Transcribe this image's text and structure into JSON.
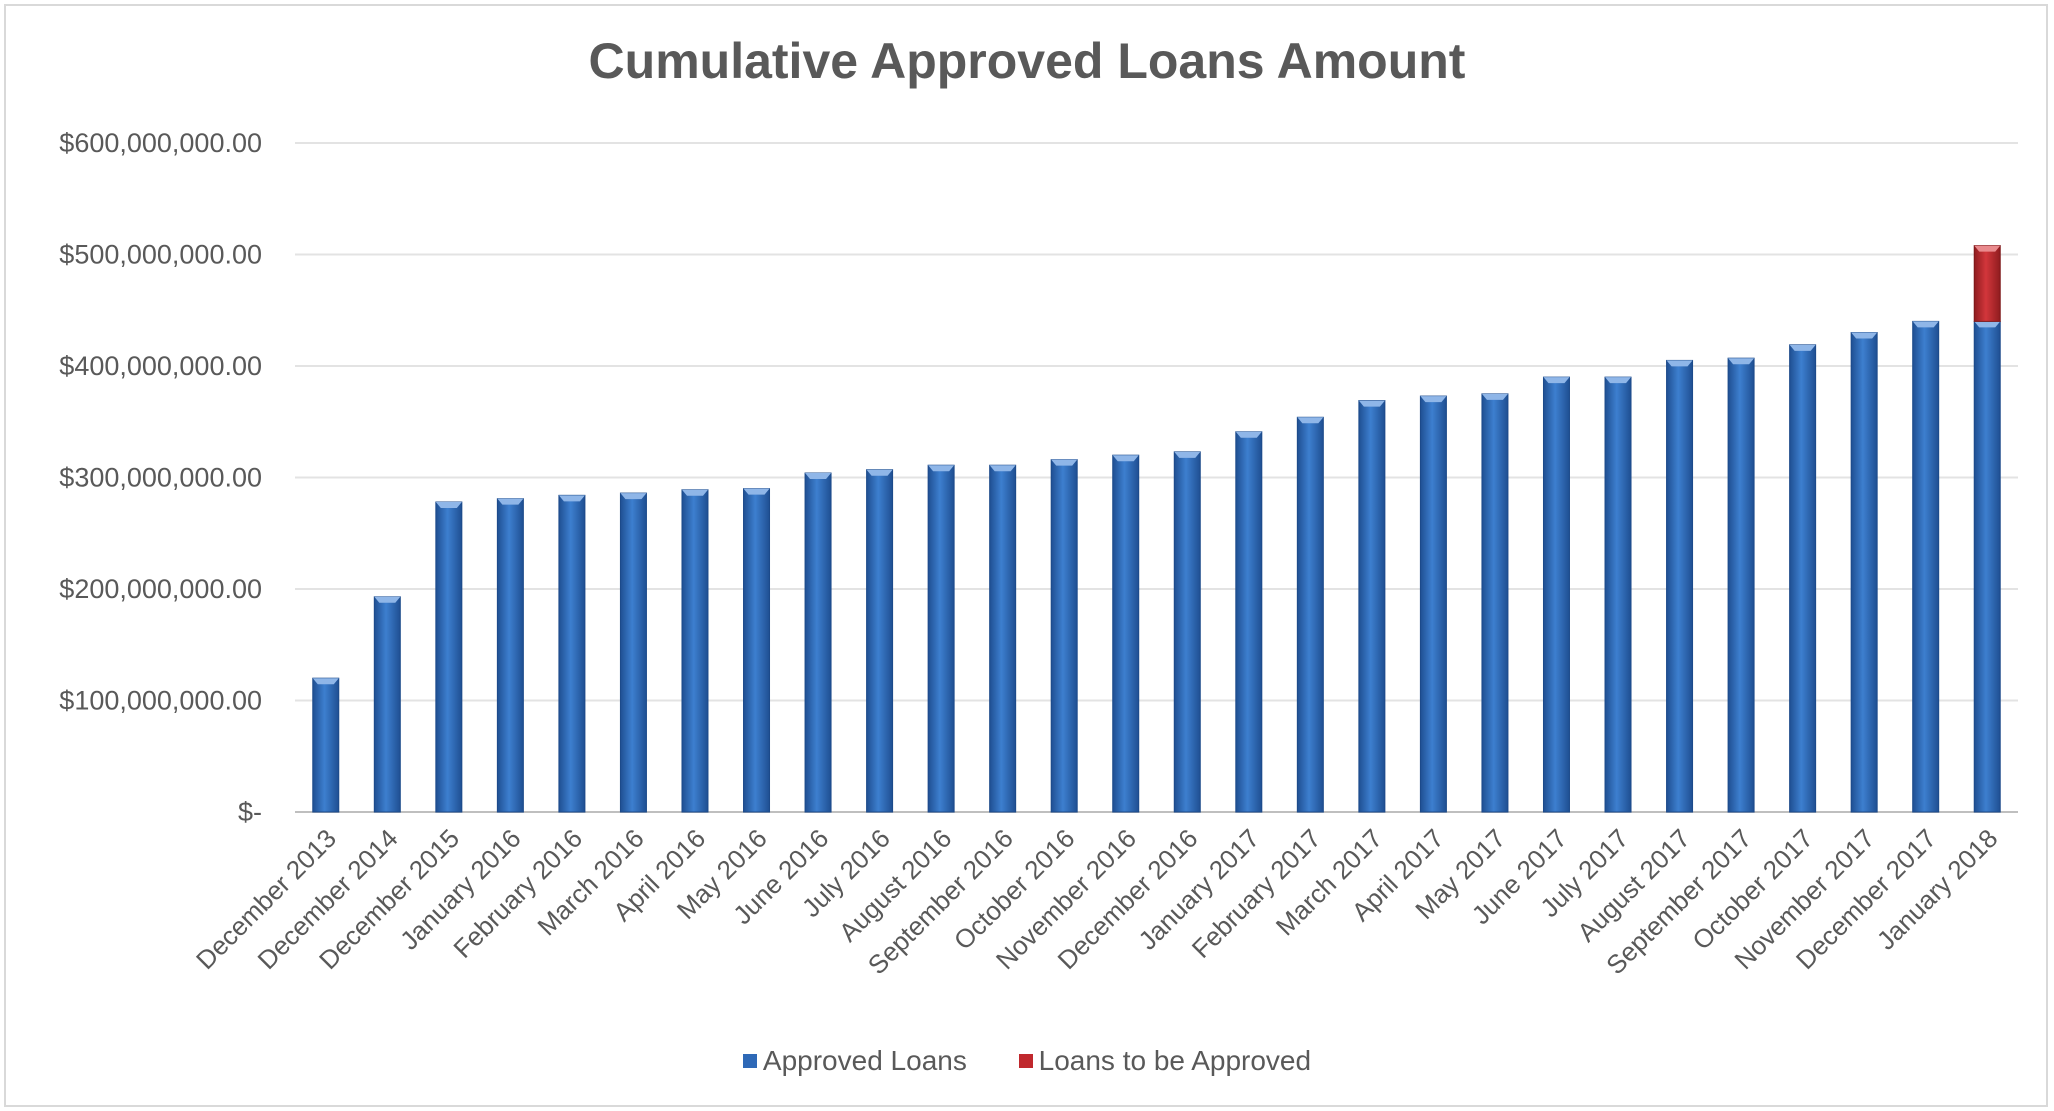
{
  "chart_data": {
    "type": "bar",
    "stacked": true,
    "title": "Cumulative Approved Loans Amount",
    "xlabel": "",
    "ylabel": "",
    "ylim": [
      0,
      600000000
    ],
    "y_ticks": [
      0,
      100000000,
      200000000,
      300000000,
      400000000,
      500000000,
      600000000
    ],
    "y_tick_labels": [
      "$-",
      "$100,000,000.00",
      "$200,000,000.00",
      "$300,000,000.00",
      "$400,000,000.00",
      "$500,000,000.00",
      "$600,000,000.00"
    ],
    "grid": true,
    "legend_position": "bottom",
    "categories": [
      "December 2013",
      "December 2014",
      "December 2015",
      "January 2016",
      "February 2016",
      "March 2016",
      "April 2016",
      "May 2016",
      "June 2016",
      "July 2016",
      "August 2016",
      "September 2016",
      "October 2016",
      "November 2016",
      "December 2016",
      "January 2017",
      "February 2017",
      "March 2017",
      "April 2017",
      "May 2017",
      "June 2017",
      "July 2017",
      "August 2017",
      "September 2017",
      "October 2017",
      "November 2017",
      "December 2017",
      "January 2018"
    ],
    "series": [
      {
        "name": "Approved Loans",
        "color": "#2e69b7",
        "values": [
          120000000,
          193000000,
          278000000,
          281000000,
          284000000,
          286000000,
          289000000,
          290000000,
          304000000,
          307000000,
          311000000,
          311000000,
          316000000,
          320000000,
          323000000,
          341000000,
          354000000,
          369000000,
          373000000,
          375000000,
          390000000,
          390000000,
          405000000,
          407000000,
          419000000,
          430000000,
          440000000,
          440000000
        ]
      },
      {
        "name": "Loans to be Approved",
        "color": "#c0282d",
        "values": [
          0,
          0,
          0,
          0,
          0,
          0,
          0,
          0,
          0,
          0,
          0,
          0,
          0,
          0,
          0,
          0,
          0,
          0,
          0,
          0,
          0,
          0,
          0,
          0,
          0,
          0,
          0,
          68000000
        ]
      }
    ]
  }
}
